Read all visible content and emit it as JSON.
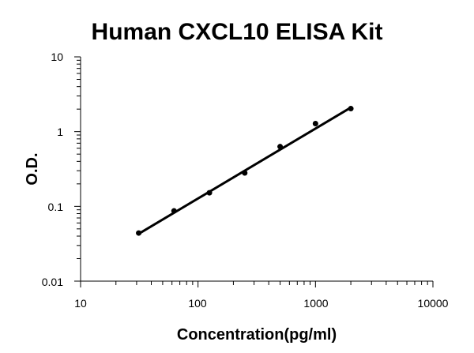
{
  "chart_data": {
    "type": "scatter",
    "title": "Human CXCL10 ELISA Kit",
    "xlabel": "Concentration(pg/ml)",
    "ylabel": "O.D.",
    "x_scale": "log",
    "y_scale": "log",
    "xlim": [
      10,
      10000
    ],
    "ylim": [
      0.01,
      10
    ],
    "x_ticks": [
      "10",
      "100",
      "1000",
      "10000"
    ],
    "y_ticks": [
      "0.01",
      "0.1",
      "1",
      "10"
    ],
    "grid": false,
    "legend": "none",
    "series": [
      {
        "x": [
          31.25,
          62.5,
          125,
          250,
          500,
          1000,
          2000
        ],
        "y": [
          0.044,
          0.087,
          0.152,
          0.28,
          0.63,
          1.28,
          2.03
        ]
      }
    ],
    "fit_line": {
      "x": [
        31.25,
        2000
      ],
      "y": [
        0.043,
        2.1
      ]
    },
    "colors": {
      "points": "#000000",
      "line": "#000000",
      "axes": "#000000"
    }
  }
}
